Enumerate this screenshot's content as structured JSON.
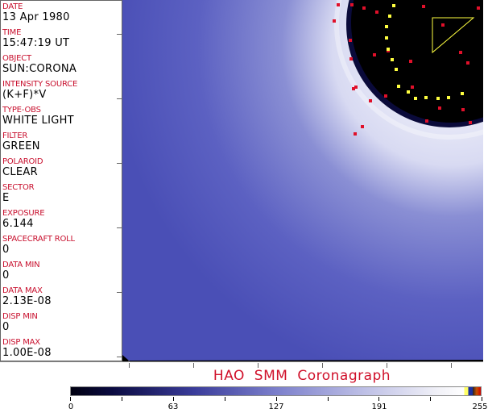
{
  "fields": [
    {
      "label": "DATE",
      "value": "13 Apr 1980"
    },
    {
      "label": "TIME",
      "value": "15:47:19 UT"
    },
    {
      "label": "OBJECT",
      "value": "SUN:CORONA"
    },
    {
      "label": "INTENSITY SOURCE",
      "value": "(K+F)*V"
    },
    {
      "label": "TYPE-OBS",
      "value": "WHITE LIGHT"
    },
    {
      "label": "FILTER",
      "value": "GREEN"
    },
    {
      "label": "POLAROID",
      "value": "CLEAR"
    },
    {
      "label": "SECTOR",
      "value": "E"
    },
    {
      "label": "EXPOSURE",
      "value": "6.144"
    },
    {
      "label": "SPACECRAFT ROLL",
      "value": "0"
    },
    {
      "label": "DATA MIN",
      "value": "0"
    },
    {
      "label": "DATA MAX",
      "value": "2.13E-08"
    },
    {
      "label": "DISP MIN",
      "value": "0"
    },
    {
      "label": "DISP MAX",
      "value": "1.00E-08"
    }
  ],
  "title": "HAO SMM Coronagraph",
  "colorbar": {
    "labels": [
      "0",
      "63",
      "127",
      "191",
      "255"
    ],
    "colormap": "black-blue-white"
  },
  "colors": {
    "label": "#c8102e",
    "image_blue": "#5a5fbf",
    "marker_red": "#e0102a",
    "marker_yellow": "#ffff40"
  }
}
